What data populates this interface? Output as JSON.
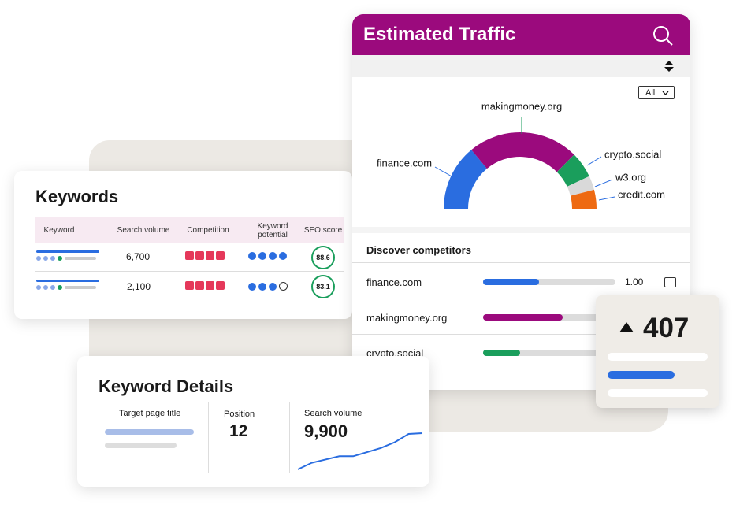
{
  "keywords_card": {
    "title": "Keywords",
    "columns": [
      "Keyword",
      "Search volume",
      "Competition",
      "Keyword potential",
      "SEO score"
    ],
    "rows": [
      {
        "search_volume": "6,700",
        "seo_score": "88.6"
      },
      {
        "search_volume": "2,100",
        "seo_score": "83.1"
      }
    ]
  },
  "traffic_card": {
    "title": "Estimated Traffic",
    "filter": "All"
  },
  "competitors": {
    "title": "Discover competitors",
    "rows": [
      {
        "name": "finance.com",
        "share": 0.42,
        "score": "1.00",
        "color": "#2a6de0"
      },
      {
        "name": "makingmoney.org",
        "share": 0.6,
        "color": "#9b0a7d"
      },
      {
        "name": "crypto.social",
        "share": 0.28,
        "color": "#1a9e5c"
      }
    ]
  },
  "rank_card": {
    "value": "407"
  },
  "keyword_details": {
    "title": "Keyword Details",
    "columns": [
      "Target page title",
      "Position",
      "Search volume"
    ],
    "position": "12",
    "search_volume": "9,900"
  },
  "chart_data": [
    {
      "type": "pie",
      "categories": [
        "finance.com",
        "makingmoney.org",
        "crypto.social",
        "w3.org",
        "credit.com"
      ],
      "values": [
        28,
        47,
        11,
        6,
        8
      ],
      "colors": [
        "#2a6de0",
        "#9b0a7d",
        "#1a9e5c",
        "#d9d9d9",
        "#ee6a12"
      ]
    },
    {
      "type": "line",
      "categories": [
        null,
        null,
        null,
        null,
        null,
        null,
        null,
        null,
        null,
        null
      ],
      "values": [
        0,
        8,
        12,
        16,
        16,
        21,
        26,
        33,
        43,
        44
      ],
      "color": "#2a6de0"
    }
  ]
}
